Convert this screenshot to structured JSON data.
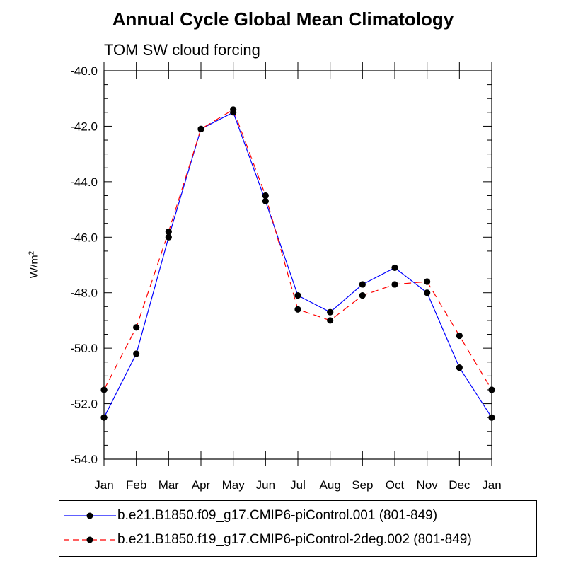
{
  "chart_data": {
    "type": "line",
    "title": "Annual Cycle Global Mean Climatology",
    "subtitle": "TOM SW cloud forcing",
    "ylabel": "W/m",
    "ylabel_exp": "2",
    "xlabel": "",
    "categories": [
      "Jan",
      "Feb",
      "Mar",
      "Apr",
      "May",
      "Jun",
      "Jul",
      "Aug",
      "Sep",
      "Oct",
      "Nov",
      "Dec",
      "Jan"
    ],
    "ylim": [
      -54.0,
      -40.0
    ],
    "yticks": [
      -40.0,
      -42.0,
      -44.0,
      -46.0,
      -48.0,
      -50.0,
      -52.0,
      -54.0
    ],
    "ytick_labels": [
      "-40.0",
      "-42.0",
      "-44.0",
      "-46.0",
      "-48.0",
      "-50.0",
      "-52.0",
      "-54.0"
    ],
    "grid": false,
    "legend_position": "bottom",
    "series": [
      {
        "name": "b.e21.B1850.f09_g17.CMIP6-piControl.001 (801-849)",
        "color": "#0000ff",
        "dash": "solid",
        "values": [
          -52.5,
          -50.2,
          -46.0,
          -42.1,
          -41.5,
          -44.7,
          -48.1,
          -48.7,
          -47.7,
          -47.1,
          -48.0,
          -50.7,
          -52.5
        ]
      },
      {
        "name": "b.e21.B1850.f19_g17.CMIP6-piControl-2deg.002 (801-849)",
        "color": "#ff0000",
        "dash": "dashed",
        "values": [
          -51.5,
          -49.25,
          -45.8,
          -42.1,
          -41.4,
          -44.5,
          -48.6,
          -49.0,
          -48.1,
          -47.7,
          -47.6,
          -49.55,
          -51.5
        ]
      }
    ]
  }
}
